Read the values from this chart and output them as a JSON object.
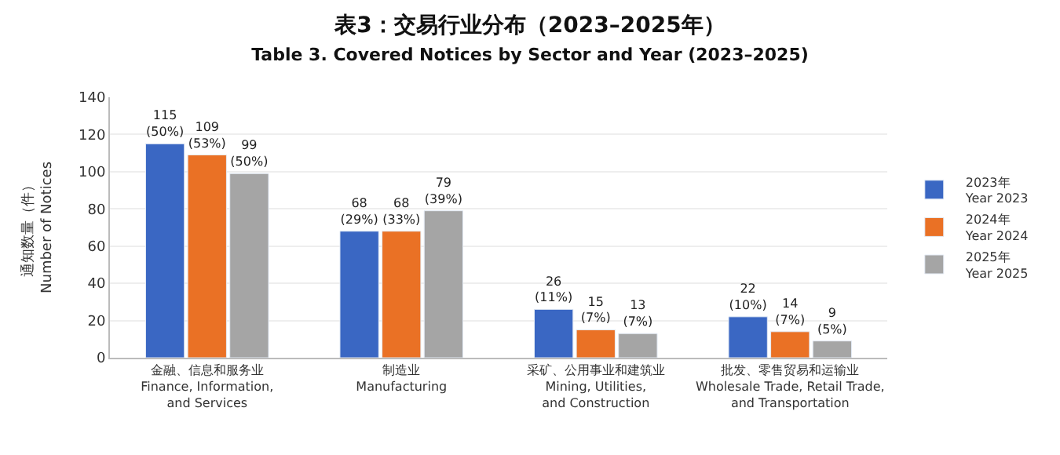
{
  "chart_data": {
    "type": "bar",
    "title": "表3：交易行业分布（2023–2025年）",
    "subtitle": "Table 3. Covered Notices by Sector and Year (2023–2025)",
    "ylabel": "通知数量（件）\nNumber of Notices",
    "categories": [
      "金融、信息和服务业\nFinance, Information,\nand Services",
      "制造业\nManufacturing",
      "采矿、公用事业和建筑业\nMining, Utilities,\nand Construction",
      "批发、零售贸易和运输业\nWholesale Trade, Retail Trade,\nand Transportation"
    ],
    "series": [
      {
        "name": "2023年\nYear 2023",
        "color": "#3a67c3",
        "values": [
          115,
          68,
          26,
          22
        ],
        "value_labels": [
          "115\n(50%)",
          "68\n(29%)",
          "26\n(11%)",
          "22\n(10%)"
        ]
      },
      {
        "name": "2024年\nYear 2024",
        "color": "#ea7125",
        "values": [
          109,
          68,
          15,
          14
        ],
        "value_labels": [
          "109\n(53%)",
          "68\n(33%)",
          "15\n(7%)",
          "14\n(7%)"
        ]
      },
      {
        "name": "2025年\nYear 2025",
        "color": "#a5a5a5",
        "values": [
          99,
          79,
          13,
          9
        ],
        "value_labels": [
          "99\n(50%)",
          "79\n(39%)",
          "13\n(7%)",
          "9\n(5%)"
        ]
      }
    ],
    "ylim": [
      0,
      140
    ],
    "yticks": [
      0,
      20,
      40,
      60,
      80,
      100,
      120,
      140
    ],
    "grid": "y",
    "legend": "right"
  }
}
